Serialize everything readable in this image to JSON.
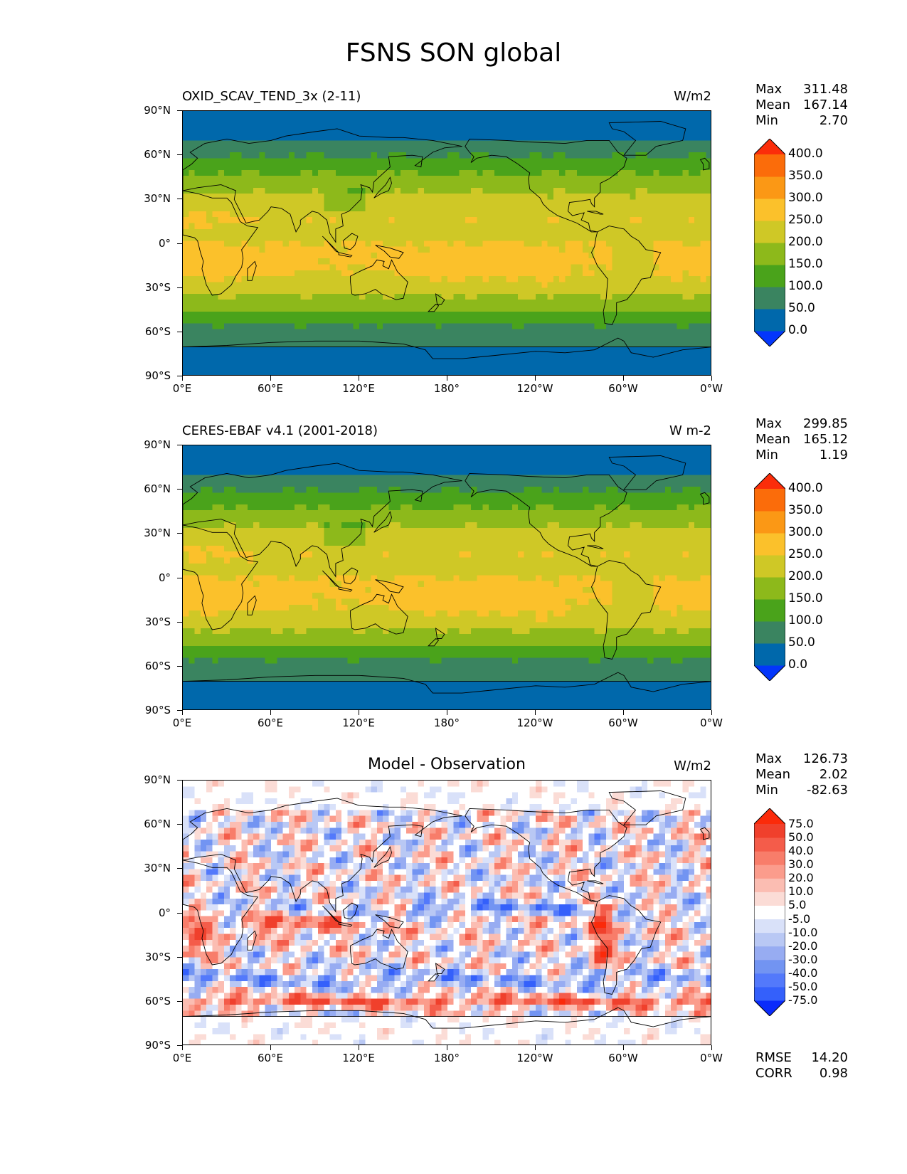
{
  "figure_title": "FSNS SON global",
  "lat_labels": [
    "90°N",
    "60°N",
    "30°N",
    "0°",
    "30°S",
    "60°S",
    "90°S"
  ],
  "lon_labels": [
    "0°E",
    "60°E",
    "120°E",
    "180°",
    "120°W",
    "60°W",
    "0°W"
  ],
  "panels": [
    {
      "title": "OXID_SCAV_TEND_3x (2-11)",
      "title_style": "left",
      "units": "W/m2",
      "stats": [
        {
          "label": "Max",
          "value": "311.48"
        },
        {
          "label": "Mean",
          "value": "167.14"
        },
        {
          "label": "Min",
          "value": "2.70"
        }
      ],
      "colorbar_labels": [
        "400.0",
        "350.0",
        "300.0",
        "250.0",
        "200.0",
        "150.0",
        "100.0",
        "50.0",
        "0.0"
      ]
    },
    {
      "title": "CERES-EBAF v4.1 (2001-2018)",
      "title_style": "left",
      "units": "W m-2",
      "stats": [
        {
          "label": "Max",
          "value": "299.85"
        },
        {
          "label": "Mean",
          "value": "165.12"
        },
        {
          "label": "Min",
          "value": "1.19"
        }
      ],
      "colorbar_labels": [
        "400.0",
        "350.0",
        "300.0",
        "250.0",
        "200.0",
        "150.0",
        "100.0",
        "50.0",
        "0.0"
      ]
    },
    {
      "title": "Model - Observation",
      "title_style": "center",
      "units": "W/m2",
      "stats": [
        {
          "label": "Max",
          "value": "126.73"
        },
        {
          "label": "Mean",
          "value": "2.02"
        },
        {
          "label": "Min",
          "value": "-82.63"
        }
      ],
      "colorbar_labels": [
        "75.0",
        "50.0",
        "40.0",
        "30.0",
        "20.0",
        "10.0",
        "5.0",
        "-5.0",
        "-10.0",
        "-20.0",
        "-30.0",
        "-40.0",
        "-50.0",
        "-75.0"
      ],
      "metrics": [
        {
          "label": "RMSE",
          "value": "14.20"
        },
        {
          "label": "CORR",
          "value": "0.98"
        }
      ]
    }
  ],
  "colors": {
    "abs_scale": [
      "#0336fb",
      "#0068ab",
      "#3a8460",
      "#4aa31b",
      "#8db91b",
      "#cfc826",
      "#fbc12b",
      "#fb9815",
      "#fb6c0a",
      "#fb2d0a"
    ],
    "diff_scale": [
      "#0a2bfb",
      "#3460fb",
      "#5379fb",
      "#7294f2",
      "#97acf2",
      "#b9c8f4",
      "#d9e1f9",
      "#ffffff",
      "#fbdcd6",
      "#fbbdb2",
      "#fb9c8c",
      "#f87d6a",
      "#f45c4a",
      "#f0402c",
      "#fb2a0a"
    ]
  }
}
